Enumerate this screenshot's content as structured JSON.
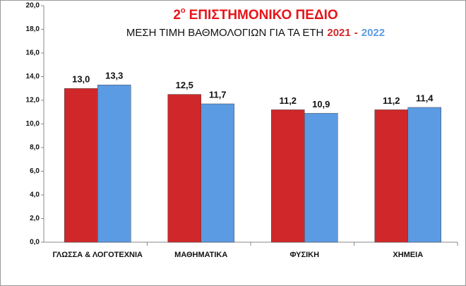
{
  "chart_data": {
    "type": "bar",
    "title_number": "2",
    "title_superscript": "ο",
    "title": "ΕΠΙΣΤΗΜΟΝΙΚΟ ΠΕΔΙΟ",
    "subtitle": "ΜΕΣΗ ΤΙΜΗ ΒΑΘΜΟΛΟΓΙΩΝ ΓΙΑ ΤΑ ΕΤΗ",
    "subtitle_separator": "-",
    "categories": [
      "ΓΛΩΣΣΑ & ΛΟΓΟΤΕΧΝΙΑ",
      "ΜΑΘΗΜΑΤΙΚΑ",
      "ΦΥΣΙΚΗ",
      "ΧΗΜΕΙΑ"
    ],
    "series": [
      {
        "name": "2021",
        "color": "#d0282a",
        "values": [
          13.0,
          12.5,
          11.2,
          11.2
        ],
        "value_labels": [
          "13,0",
          "12,5",
          "11,2",
          "11,2"
        ]
      },
      {
        "name": "2022",
        "color": "#5b9be3",
        "values": [
          13.3,
          11.7,
          10.9,
          11.4
        ],
        "value_labels": [
          "13,3",
          "11,7",
          "10,9",
          "11,4"
        ]
      }
    ],
    "ylim": [
      0,
      20
    ],
    "yticks": [
      {
        "value": 0,
        "label": "0,0"
      },
      {
        "value": 2,
        "label": "2,0"
      },
      {
        "value": 4,
        "label": "4,0"
      },
      {
        "value": 6,
        "label": "6,0"
      },
      {
        "value": 8,
        "label": "8,0"
      },
      {
        "value": 10,
        "label": "10,0"
      },
      {
        "value": 12,
        "label": "12,0"
      },
      {
        "value": 14,
        "label": "14,0"
      },
      {
        "value": 16,
        "label": "16,0"
      },
      {
        "value": 18,
        "label": "18,0"
      },
      {
        "value": 20,
        "label": "20,0"
      }
    ],
    "title_color": "#e8141a",
    "subtitle_color": "#111111",
    "separator_color": "#e8141a"
  }
}
